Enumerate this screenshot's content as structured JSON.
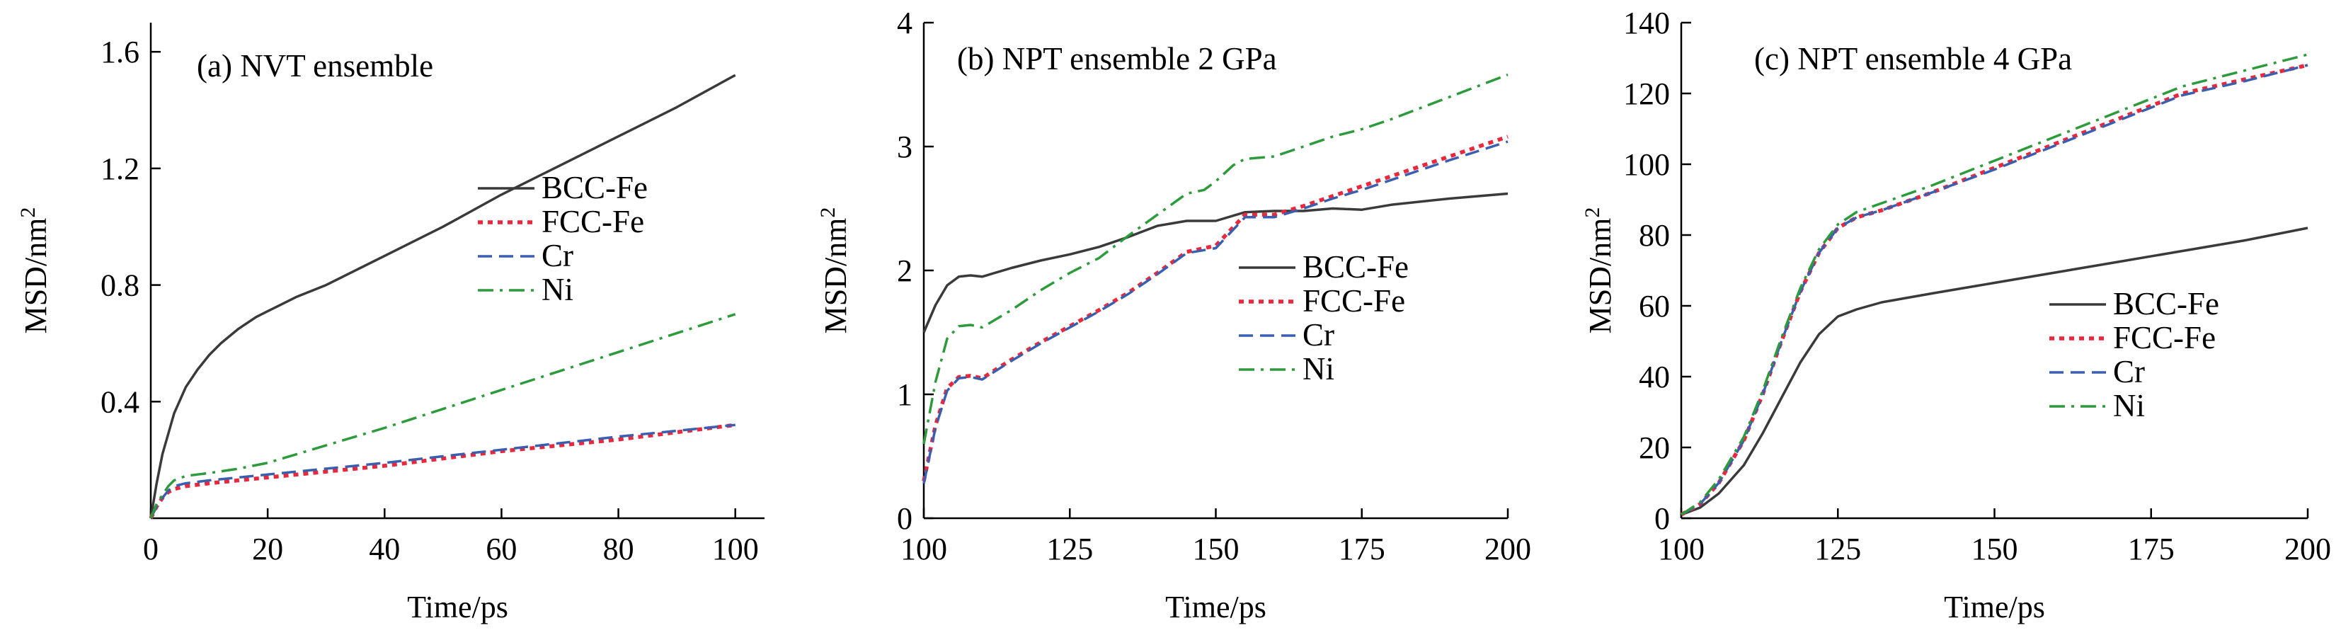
{
  "chart_data": [
    {
      "type": "line",
      "title": "(a) NVT ensemble",
      "xlabel": "Time/ps",
      "ylabel": "MSD/nm",
      "ylabel_sup": "2",
      "xlim": [
        0,
        105
      ],
      "ylim": [
        0,
        1.7
      ],
      "xticks": [
        0,
        20,
        40,
        60,
        80,
        100
      ],
      "xtick_labels": [
        "0",
        "20",
        "40",
        "60",
        "80",
        "100"
      ],
      "yticks": [
        0.4,
        0.8,
        1.2,
        1.6
      ],
      "ytick_labels": [
        "0.4",
        "0.8",
        "1.2",
        "1.6"
      ],
      "legend_position": "center-right",
      "series": [
        {
          "name": "BCC-Fe",
          "color": "#3a3a3a",
          "dash": "solid",
          "x": [
            0,
            1,
            2,
            4,
            6,
            8,
            10,
            12,
            15,
            18,
            20,
            25,
            30,
            40,
            50,
            60,
            70,
            80,
            90,
            100
          ],
          "y": [
            0.0,
            0.12,
            0.22,
            0.36,
            0.45,
            0.51,
            0.56,
            0.6,
            0.65,
            0.69,
            0.71,
            0.76,
            0.8,
            0.9,
            1.0,
            1.11,
            1.21,
            1.31,
            1.41,
            1.52
          ]
        },
        {
          "name": "FCC-Fe",
          "color": "#e8283c",
          "dash": "dotted",
          "x": [
            0,
            1,
            2,
            3,
            4,
            6,
            10,
            20,
            40,
            60,
            80,
            100
          ],
          "y": [
            0.0,
            0.04,
            0.07,
            0.09,
            0.1,
            0.11,
            0.12,
            0.14,
            0.18,
            0.23,
            0.27,
            0.32
          ]
        },
        {
          "name": "Cr",
          "color": "#3a5fb0",
          "dash": "dashed",
          "x": [
            0,
            1,
            2,
            3,
            4,
            6,
            10,
            20,
            40,
            60,
            80,
            100
          ],
          "y": [
            0.0,
            0.04,
            0.07,
            0.095,
            0.11,
            0.12,
            0.13,
            0.15,
            0.19,
            0.235,
            0.28,
            0.32
          ]
        },
        {
          "name": "Ni",
          "color": "#2d9a3c",
          "dash": "dashdot",
          "x": [
            0,
            1,
            2,
            3,
            4,
            6,
            8,
            10,
            15,
            20,
            30,
            40,
            60,
            80,
            100
          ],
          "y": [
            0.0,
            0.05,
            0.08,
            0.11,
            0.13,
            0.145,
            0.15,
            0.155,
            0.17,
            0.19,
            0.25,
            0.31,
            0.44,
            0.57,
            0.7
          ]
        }
      ]
    },
    {
      "type": "line",
      "title": "(b) NPT ensemble  2 GPa",
      "xlabel": "Time/ps",
      "ylabel": "MSD/nm",
      "ylabel_sup": "2",
      "xlim": [
        100,
        200
      ],
      "ylim": [
        0,
        4
      ],
      "xticks": [
        100,
        125,
        150,
        175,
        200
      ],
      "xtick_labels": [
        "100",
        "125",
        "150",
        "175",
        "200"
      ],
      "yticks": [
        0,
        1,
        2,
        3,
        4
      ],
      "ytick_labels": [
        "0",
        "1",
        "2",
        "3",
        "4"
      ],
      "legend_position": "center-right",
      "series": [
        {
          "name": "BCC-Fe",
          "color": "#3a3a3a",
          "dash": "solid",
          "x": [
            100,
            102,
            104,
            106,
            108,
            110,
            115,
            120,
            125,
            130,
            135,
            140,
            145,
            150,
            155,
            160,
            165,
            170,
            175,
            180,
            190,
            200
          ],
          "y": [
            1.5,
            1.72,
            1.88,
            1.95,
            1.96,
            1.95,
            2.02,
            2.08,
            2.13,
            2.19,
            2.27,
            2.36,
            2.4,
            2.4,
            2.47,
            2.48,
            2.48,
            2.5,
            2.49,
            2.53,
            2.58,
            2.62
          ]
        },
        {
          "name": "FCC-Fe",
          "color": "#e8283c",
          "dash": "dotted",
          "x": [
            100,
            102,
            104,
            106,
            108,
            110,
            115,
            120,
            125,
            130,
            135,
            140,
            145,
            150,
            152,
            155,
            160,
            165,
            170,
            175,
            180,
            190,
            200
          ],
          "y": [
            0.3,
            0.75,
            1.05,
            1.14,
            1.15,
            1.13,
            1.28,
            1.42,
            1.55,
            1.68,
            1.82,
            1.98,
            2.15,
            2.2,
            2.3,
            2.45,
            2.45,
            2.52,
            2.6,
            2.68,
            2.76,
            2.92,
            3.08
          ]
        },
        {
          "name": "Cr",
          "color": "#3a5fb0",
          "dash": "dashed",
          "x": [
            100,
            102,
            104,
            106,
            108,
            110,
            115,
            120,
            125,
            130,
            135,
            140,
            145,
            150,
            152,
            155,
            160,
            165,
            170,
            175,
            180,
            190,
            200
          ],
          "y": [
            0.28,
            0.73,
            1.03,
            1.13,
            1.14,
            1.12,
            1.27,
            1.41,
            1.54,
            1.67,
            1.81,
            1.97,
            2.14,
            2.18,
            2.28,
            2.43,
            2.43,
            2.5,
            2.58,
            2.65,
            2.73,
            2.89,
            3.04
          ]
        },
        {
          "name": "Ni",
          "color": "#2d9a3c",
          "dash": "dashdot",
          "x": [
            100,
            102,
            104,
            106,
            108,
            110,
            115,
            120,
            125,
            130,
            135,
            140,
            145,
            148,
            150,
            153,
            155,
            160,
            165,
            170,
            175,
            180,
            190,
            200
          ],
          "y": [
            0.6,
            1.1,
            1.45,
            1.55,
            1.56,
            1.54,
            1.68,
            1.84,
            1.98,
            2.1,
            2.28,
            2.45,
            2.62,
            2.65,
            2.72,
            2.85,
            2.9,
            2.92,
            3.0,
            3.08,
            3.14,
            3.22,
            3.4,
            3.58
          ]
        }
      ]
    },
    {
      "type": "line",
      "title": "(c) NPT ensemble  4 GPa",
      "xlabel": "Time/ps",
      "ylabel": "MSD/nm",
      "ylabel_sup": "2",
      "xlim": [
        100,
        200
      ],
      "ylim": [
        0,
        140
      ],
      "xticks": [
        100,
        125,
        150,
        175,
        200
      ],
      "xtick_labels": [
        "100",
        "125",
        "150",
        "175",
        "200"
      ],
      "yticks": [
        0,
        20,
        40,
        60,
        80,
        100,
        120,
        140
      ],
      "ytick_labels": [
        "0",
        "20",
        "40",
        "60",
        "80",
        "100",
        "120",
        "140"
      ],
      "legend_position": "lower-right",
      "series": [
        {
          "name": "BCC-Fe",
          "color": "#3a3a3a",
          "dash": "solid",
          "x": [
            100,
            103,
            106,
            110,
            113,
            116,
            119,
            122,
            125,
            128,
            132,
            140,
            150,
            160,
            170,
            180,
            190,
            200
          ],
          "y": [
            1,
            3,
            7,
            15,
            24,
            34,
            44,
            52,
            57,
            59,
            61,
            63.5,
            66.5,
            69.5,
            72.5,
            75.5,
            78.5,
            82
          ]
        },
        {
          "name": "FCC-Fe",
          "color": "#e8283c",
          "dash": "dotted",
          "x": [
            100,
            103,
            106,
            110,
            113,
            116,
            119,
            122,
            125,
            128,
            132,
            140,
            150,
            160,
            170,
            180,
            190,
            200
          ],
          "y": [
            1,
            4,
            10,
            22,
            35,
            50,
            64,
            75,
            82,
            85,
            87,
            92,
            99,
            106,
            113,
            120,
            124,
            128
          ]
        },
        {
          "name": "Cr",
          "color": "#3a5fb0",
          "dash": "dashed",
          "x": [
            100,
            103,
            106,
            110,
            113,
            116,
            119,
            122,
            125,
            128,
            132,
            140,
            150,
            160,
            170,
            180,
            190,
            200
          ],
          "y": [
            1,
            4,
            10,
            22,
            35,
            50,
            64,
            75,
            82,
            85,
            87,
            92,
            98.5,
            105.5,
            112.5,
            119.5,
            123.5,
            128
          ]
        },
        {
          "name": "Ni",
          "color": "#2d9a3c",
          "dash": "dashdot",
          "x": [
            100,
            103,
            106,
            110,
            113,
            116,
            119,
            122,
            125,
            128,
            132,
            140,
            150,
            160,
            170,
            180,
            190,
            200
          ],
          "y": [
            1,
            4.5,
            11,
            23,
            36,
            51,
            65,
            76,
            83,
            86.5,
            89,
            94,
            101,
            108,
            115,
            122,
            126.5,
            131
          ]
        }
      ]
    }
  ]
}
